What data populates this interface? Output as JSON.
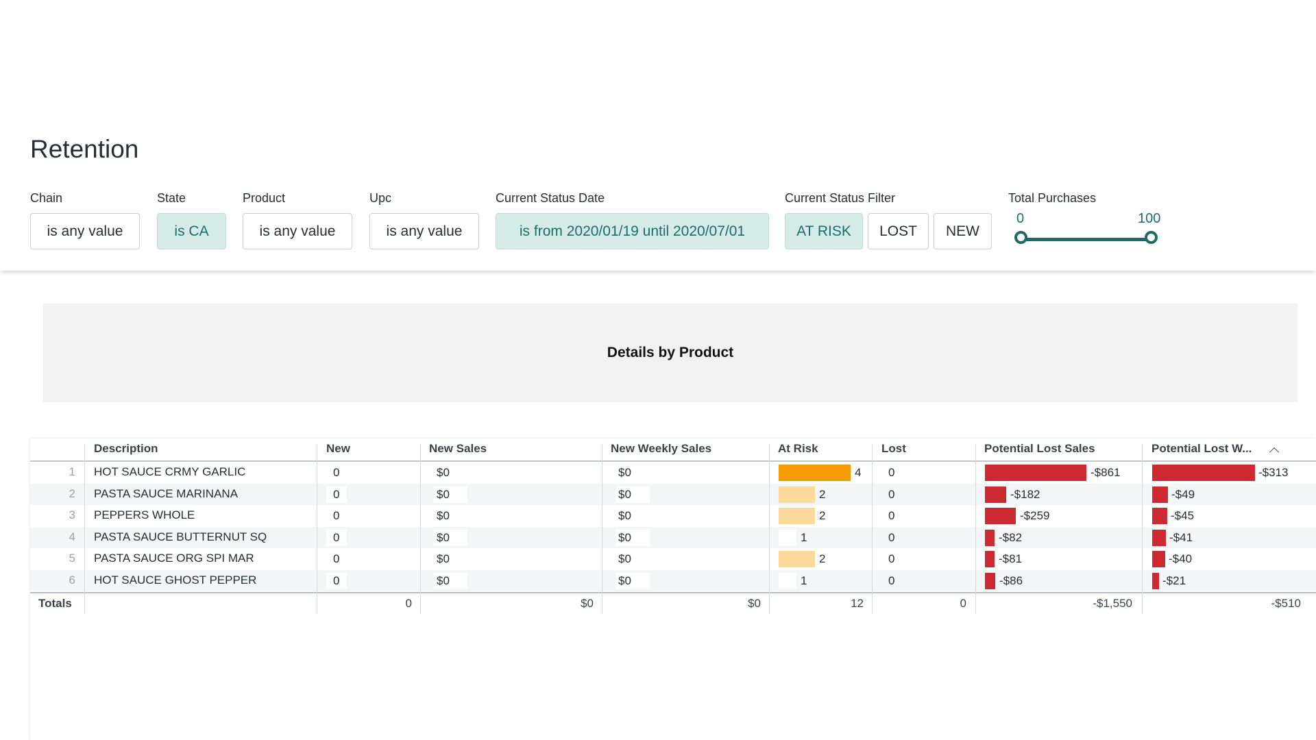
{
  "page": {
    "title": "Retention"
  },
  "filters": {
    "chain": {
      "label": "Chain",
      "value": "is any value"
    },
    "state": {
      "label": "State",
      "value": "is CA"
    },
    "product": {
      "label": "Product",
      "value": "is any value"
    },
    "upc": {
      "label": "Upc",
      "value": "is any value"
    },
    "status_date": {
      "label": "Current Status Date",
      "value": "is from 2020/01/19 until 2020/07/01"
    },
    "status_filter": {
      "label": "Current Status Filter",
      "options": [
        {
          "label": "AT RISK",
          "active": true
        },
        {
          "label": "LOST",
          "active": false
        },
        {
          "label": "NEW",
          "active": false
        }
      ]
    },
    "total_purchases": {
      "label": "Total Purchases",
      "min": "0",
      "max": "100"
    }
  },
  "tile": {
    "title": "Details by Product"
  },
  "table": {
    "columns": [
      "Description",
      "New",
      "New Sales",
      "New Weekly Sales",
      "At Risk",
      "Lost",
      "Potential Lost Sales",
      "Potential Lost W..."
    ],
    "rows": [
      {
        "num": "1",
        "description": "HOT SAUCE CRMY GARLIC",
        "new": "0",
        "new_sales": "$0",
        "new_weekly_sales": "$0",
        "at_risk": 4,
        "at_risk_label": "4",
        "lost": "0",
        "pot_lost_sales": 861,
        "pot_lost_sales_label": "-$861",
        "pot_lost_weekly": 313,
        "pot_lost_weekly_label": "-$313"
      },
      {
        "num": "2",
        "description": "PASTA SAUCE MARINANA",
        "new": "0",
        "new_sales": "$0",
        "new_weekly_sales": "$0",
        "at_risk": 2,
        "at_risk_label": "2",
        "lost": "0",
        "pot_lost_sales": 182,
        "pot_lost_sales_label": "-$182",
        "pot_lost_weekly": 49,
        "pot_lost_weekly_label": "-$49"
      },
      {
        "num": "3",
        "description": "PEPPERS WHOLE",
        "new": "0",
        "new_sales": "$0",
        "new_weekly_sales": "$0",
        "at_risk": 2,
        "at_risk_label": "2",
        "lost": "0",
        "pot_lost_sales": 259,
        "pot_lost_sales_label": "-$259",
        "pot_lost_weekly": 45,
        "pot_lost_weekly_label": "-$45"
      },
      {
        "num": "4",
        "description": "PASTA SAUCE BUTTERNUT SQ",
        "new": "0",
        "new_sales": "$0",
        "new_weekly_sales": "$0",
        "at_risk": 1,
        "at_risk_label": "1",
        "lost": "0",
        "pot_lost_sales": 82,
        "pot_lost_sales_label": "-$82",
        "pot_lost_weekly": 41,
        "pot_lost_weekly_label": "-$41"
      },
      {
        "num": "5",
        "description": "PASTA SAUCE ORG SPI MAR",
        "new": "0",
        "new_sales": "$0",
        "new_weekly_sales": "$0",
        "at_risk": 2,
        "at_risk_label": "2",
        "lost": "0",
        "pot_lost_sales": 81,
        "pot_lost_sales_label": "-$81",
        "pot_lost_weekly": 40,
        "pot_lost_weekly_label": "-$40"
      },
      {
        "num": "6",
        "description": "HOT SAUCE GHOST PEPPER",
        "new": "0",
        "new_sales": "$0",
        "new_weekly_sales": "$0",
        "at_risk": 1,
        "at_risk_label": "1",
        "lost": "0",
        "pot_lost_sales": 86,
        "pot_lost_sales_label": "-$86",
        "pot_lost_weekly": 21,
        "pot_lost_weekly_label": "-$21"
      }
    ],
    "totals": {
      "label": "Totals",
      "new": "0",
      "new_sales": "$0",
      "new_weekly_sales": "$0",
      "at_risk": "12",
      "lost": "0",
      "pot_lost_sales": "-$1,550",
      "pot_lost_weekly": "-$510"
    },
    "colors": {
      "at_risk_high": "#f59b00",
      "at_risk_low": "#fdd99b",
      "lost_bar": "#cc2a30"
    },
    "sort_icon": "chevron-up-icon"
  }
}
